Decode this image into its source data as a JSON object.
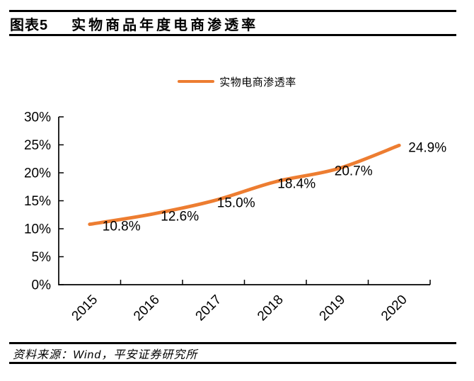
{
  "header": {
    "figure_label": "图表5",
    "title": "实物商品年度电商渗透率"
  },
  "legend": {
    "label": "实物电商渗透率",
    "line_color": "#ED7D31"
  },
  "chart_data": {
    "type": "line",
    "title": "实物商品年度电商渗透率",
    "categories": [
      "2015",
      "2016",
      "2017",
      "2018",
      "2019",
      "2020"
    ],
    "series": [
      {
        "name": "实物电商渗透率",
        "values": [
          10.8,
          12.6,
          15.0,
          18.4,
          20.7,
          24.9
        ],
        "color": "#ED7D31"
      }
    ],
    "data_labels": [
      "10.8%",
      "12.6%",
      "15.0%",
      "18.4%",
      "20.7%",
      "24.9%"
    ],
    "y_ticks": [
      "0%",
      "5%",
      "10%",
      "15%",
      "20%",
      "25%",
      "30%"
    ],
    "y_tick_values": [
      0,
      5,
      10,
      15,
      20,
      25,
      30
    ],
    "ylim": [
      0,
      30
    ],
    "grid": false,
    "legend_position": "top",
    "axis_color": "#000000",
    "label_color": "#000000"
  },
  "footer": {
    "source": "资料来源：Wind，平安证券研究所"
  }
}
